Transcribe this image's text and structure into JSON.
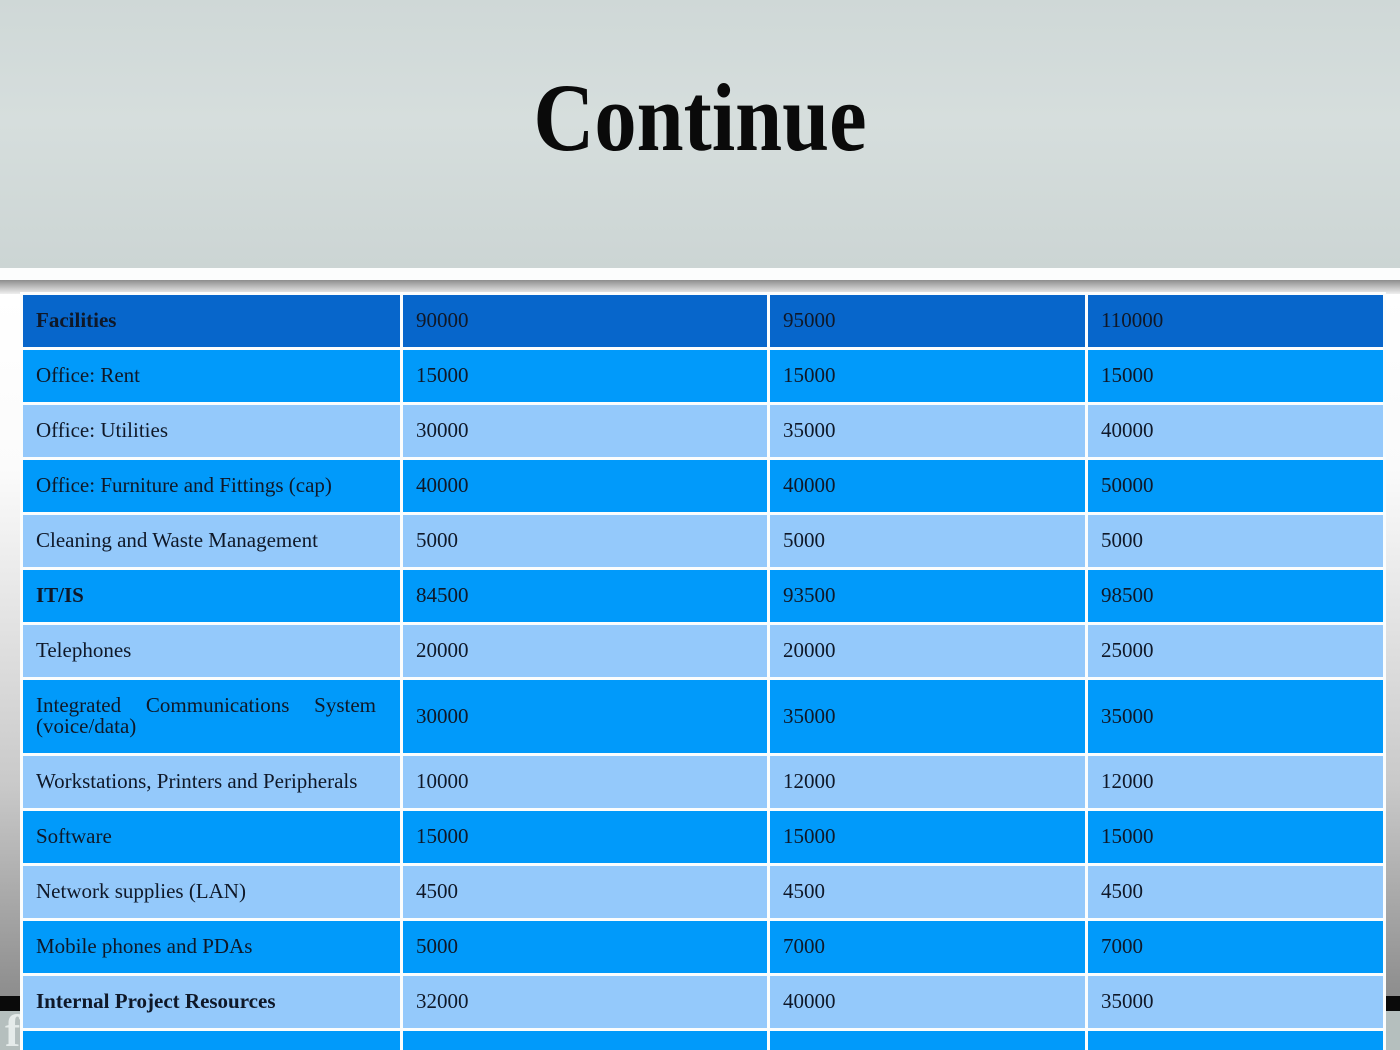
{
  "slide": {
    "title": "Continue",
    "watermark": "f"
  },
  "colors": {
    "top_bg": "#d3dbda",
    "header_row": "#0766cb",
    "row_medium": "#019afa",
    "row_light": "#94c9fb",
    "table_text": "#0f1828",
    "title_text": "#0a0a0a",
    "footer_bg": "#b5bfbe",
    "black_bar": "#0a0a0a"
  },
  "table": {
    "rows": [
      {
        "label": "Facilities",
        "bold": true,
        "shade": "header",
        "values": [
          "90000",
          "95000",
          "110000"
        ]
      },
      {
        "label": "Office: Rent",
        "bold": false,
        "shade": "medium",
        "values": [
          "15000",
          "15000",
          "15000"
        ]
      },
      {
        "label": "Office: Utilities",
        "bold": false,
        "shade": "light",
        "values": [
          "30000",
          "35000",
          "40000"
        ]
      },
      {
        "label": "Office: Furniture and Fittings (cap)",
        "bold": false,
        "shade": "medium",
        "values": [
          "40000",
          "40000",
          "50000"
        ]
      },
      {
        "label": "Cleaning and Waste Management",
        "bold": false,
        "shade": "light",
        "values": [
          "5000",
          "5000",
          "5000"
        ]
      },
      {
        "label": "IT/IS",
        "bold": true,
        "shade": "medium",
        "values": [
          "84500",
          "93500",
          "98500"
        ]
      },
      {
        "label": "Telephones",
        "bold": false,
        "shade": "light",
        "values": [
          "20000",
          "20000",
          "25000"
        ]
      },
      {
        "label": "Integrated Communications System (voice/data)",
        "bold": false,
        "shade": "medium",
        "values": [
          "30000",
          "35000",
          "35000"
        ]
      },
      {
        "label": "Workstations, Printers and Peripherals",
        "bold": false,
        "shade": "light",
        "values": [
          "10000",
          "12000",
          "12000"
        ]
      },
      {
        "label": "Software",
        "bold": false,
        "shade": "medium",
        "values": [
          "15000",
          "15000",
          "15000"
        ]
      },
      {
        "label": "Network supplies (LAN)",
        "bold": false,
        "shade": "light",
        "values": [
          "4500",
          "4500",
          "4500"
        ]
      },
      {
        "label": "Mobile phones and PDAs",
        "bold": false,
        "shade": "medium",
        "values": [
          "5000",
          "7000",
          "7000"
        ]
      },
      {
        "label": "Internal Project Resources",
        "bold": true,
        "shade": "light",
        "values": [
          "32000",
          "40000",
          "35000"
        ]
      },
      {
        "label": "",
        "bold": false,
        "shade": "medium",
        "values": [
          "",
          "",
          ""
        ]
      }
    ]
  }
}
